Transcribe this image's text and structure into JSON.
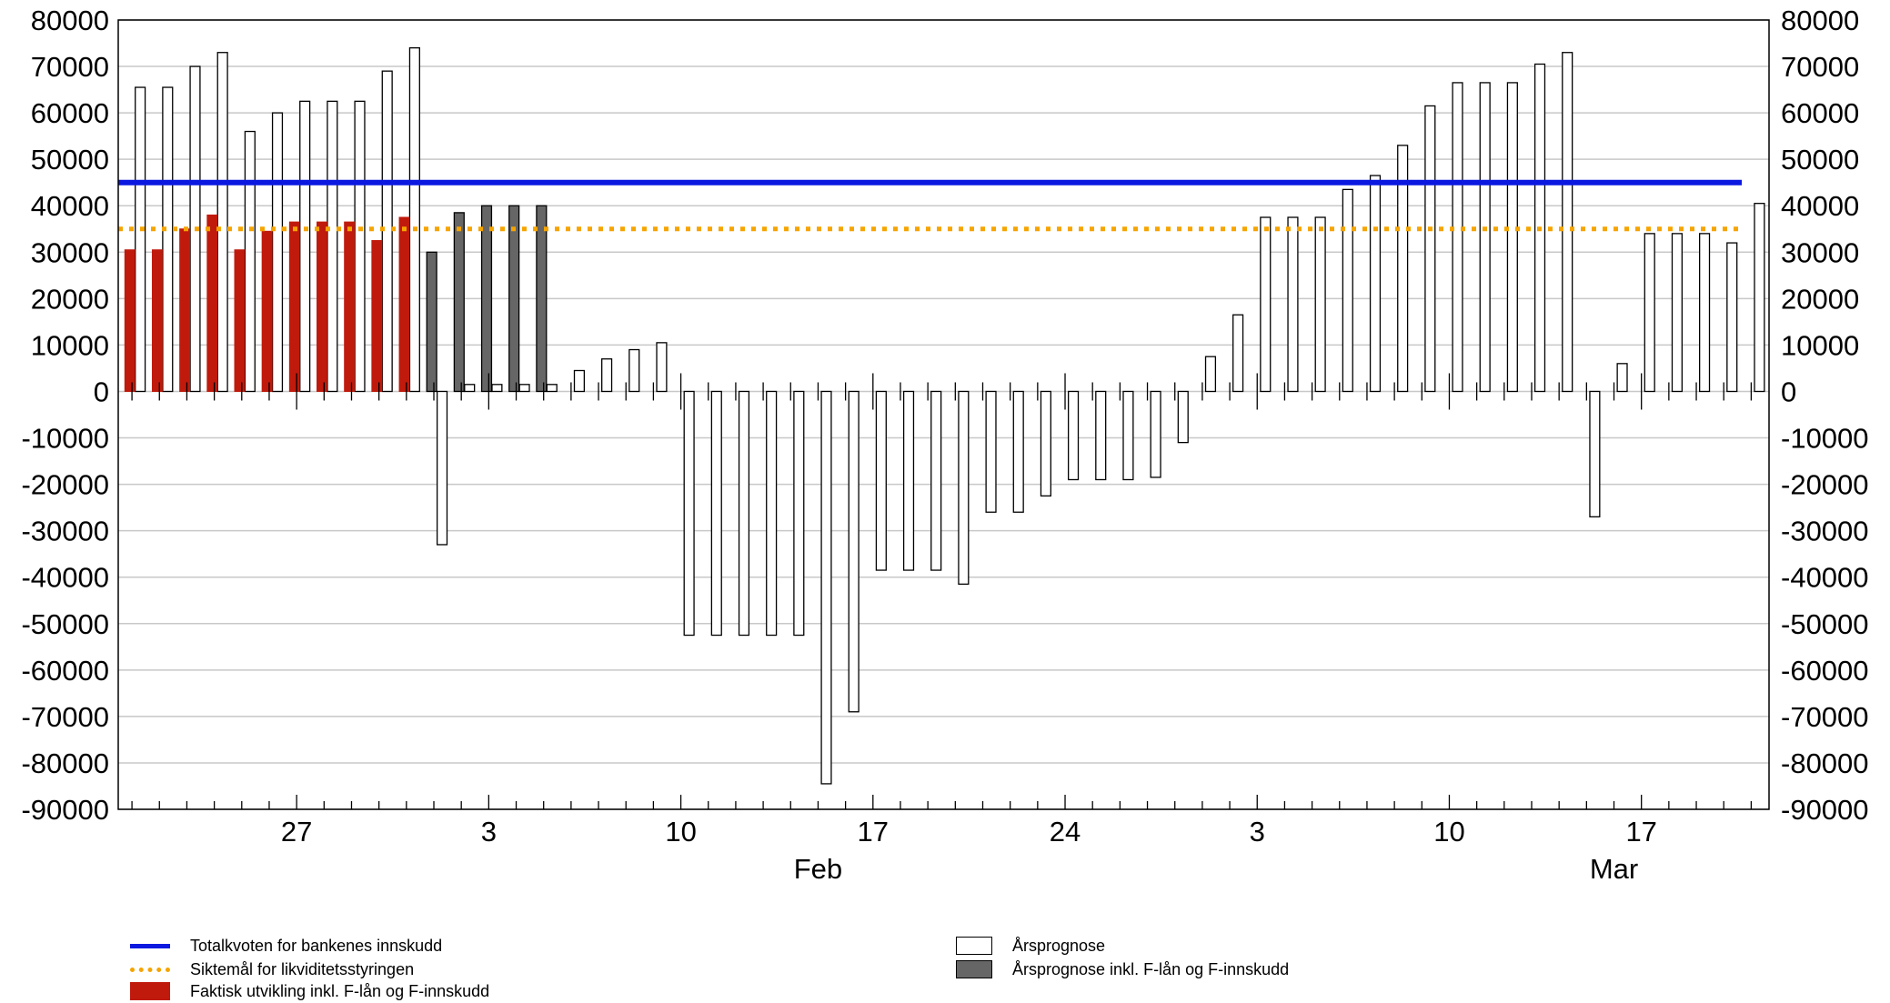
{
  "chart_data": {
    "type": "bar",
    "ylim": [
      -90000,
      80000
    ],
    "y_ticks": [
      80000,
      70000,
      60000,
      50000,
      40000,
      30000,
      20000,
      10000,
      0,
      -10000,
      -20000,
      -30000,
      -40000,
      -50000,
      -60000,
      -70000,
      -80000,
      -90000
    ],
    "x_ticks": [
      {
        "label": "27",
        "day_index": 6
      },
      {
        "label": "3",
        "day_index": 13
      },
      {
        "label": "10",
        "day_index": 20
      },
      {
        "label": "17",
        "day_index": 27
      },
      {
        "label": "24",
        "day_index": 34
      },
      {
        "label": "3",
        "day_index": 41
      },
      {
        "label": "10",
        "day_index": 48
      },
      {
        "label": "17",
        "day_index": 55
      }
    ],
    "month_labels": [
      {
        "label": "Feb",
        "day_index": 25
      },
      {
        "label": "Mar",
        "day_index": 54
      }
    ],
    "grid": true,
    "legend_position": "bottom",
    "lines": [
      {
        "name": "Totalkvoten for bankenes innskudd",
        "value": 45000,
        "color": "#0a18e0",
        "style": "solid"
      },
      {
        "name": "Siktemål for likviditetsstyringen",
        "value": 35000,
        "color": "#f5a400",
        "style": "dotted"
      }
    ],
    "series": [
      {
        "name": "Årsprognose",
        "color": "#ffffff",
        "border": "#000000",
        "values": [
          65500,
          65500,
          70000,
          73000,
          56000,
          60000,
          62500,
          62500,
          62500,
          69000,
          74000,
          -33000,
          1500,
          1500,
          1500,
          1500,
          4500,
          7000,
          9000,
          10500,
          -52500,
          -52500,
          -52500,
          -52500,
          -52500,
          -84500,
          -69000,
          -38500,
          -38500,
          -38500,
          -41500,
          -26000,
          -26000,
          -22500,
          -19000,
          -19000,
          -19000,
          -18500,
          -11000,
          7500,
          16500,
          37500,
          37500,
          37500,
          43500,
          46500,
          53000,
          61500,
          66500,
          66500,
          66500,
          70500,
          73000,
          -27000,
          6000,
          34000,
          34000,
          34000,
          32000,
          40500
        ]
      },
      {
        "name": "Årsprognose inkl. F-lån og F-innskudd",
        "color": "#666666",
        "border": "#000000",
        "values": [
          null,
          null,
          null,
          null,
          null,
          null,
          null,
          null,
          null,
          null,
          null,
          30000,
          38500,
          40000,
          40000,
          40000,
          null,
          null,
          null,
          null,
          null,
          null,
          null,
          null,
          null,
          null,
          null,
          null,
          null,
          null,
          null,
          null,
          null,
          null,
          null,
          null,
          null,
          null,
          null,
          null,
          null,
          null,
          null,
          null,
          null,
          null,
          null,
          null,
          null,
          null,
          null,
          null,
          null,
          null,
          null,
          null,
          null,
          null,
          null,
          null
        ]
      },
      {
        "name": "Faktisk utvikling inkl. F-lån og F-innskudd",
        "color": "#c01a0c",
        "border": "#c01a0c",
        "values": [
          30500,
          30500,
          35000,
          38000,
          30500,
          34500,
          36500,
          36500,
          36500,
          32500,
          37500,
          null,
          null,
          null,
          null,
          null,
          null,
          null,
          null,
          null,
          null,
          null,
          null,
          null,
          null,
          null,
          null,
          null,
          null,
          null,
          null,
          null,
          null,
          null,
          null,
          null,
          null,
          null,
          null,
          null,
          null,
          null,
          null,
          null,
          null,
          null,
          null,
          null,
          null,
          null,
          null,
          null,
          null,
          null,
          null,
          null,
          null,
          null,
          null,
          null
        ]
      }
    ]
  },
  "legend": {
    "left": [
      {
        "label": "Totalkvoten for bankenes innskudd",
        "swatch": "line-solid",
        "color": "#0a18e0"
      },
      {
        "label": "Siktemål for likviditetsstyringen",
        "swatch": "line-dotted",
        "color": "#f5a400"
      },
      {
        "label": "Faktisk utvikling inkl. F-lån og F-innskudd",
        "swatch": "box",
        "color": "#c01a0c"
      }
    ],
    "right": [
      {
        "label": "Årsprognose",
        "swatch": "box",
        "color": "#ffffff"
      },
      {
        "label": "Årsprognose inkl. F-lån og F-innskudd",
        "swatch": "box",
        "color": "#666666"
      }
    ]
  }
}
